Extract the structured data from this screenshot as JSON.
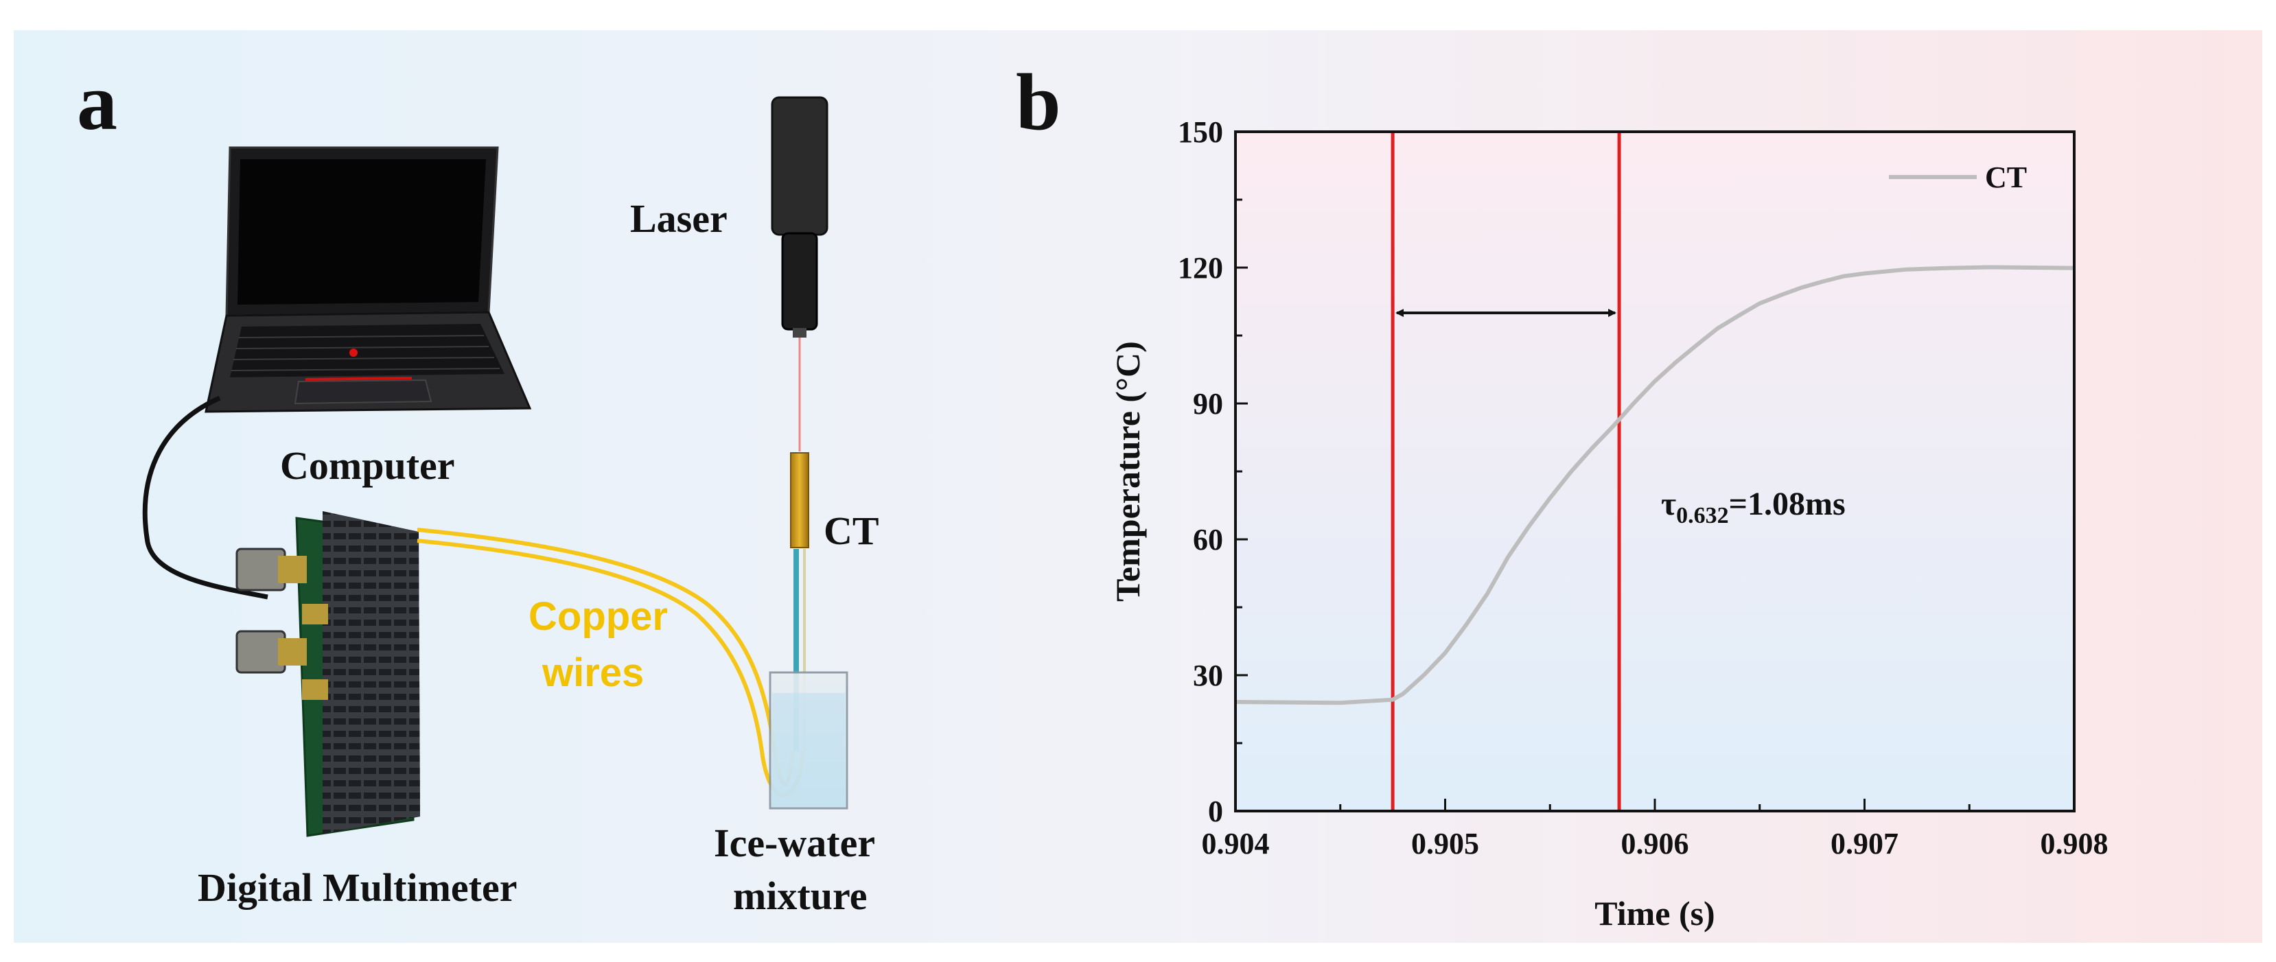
{
  "panel_a": {
    "letter": "a",
    "labels": {
      "laser": "Laser",
      "computer": "Computer",
      "ct": "CT",
      "copper": "Copper",
      "wires": "wires",
      "multimeter": "Digital Multimeter",
      "ice1": "Ice-water",
      "ice2": "mixture"
    },
    "colors": {
      "copper_wire": "#f5c518",
      "laser_beam": "#e05050",
      "red_line": "#e02020"
    }
  },
  "panel_b": {
    "letter": "b",
    "annotation_sym": "τ",
    "annotation_sub": "0.632",
    "annotation_rest": "=1.08ms"
  },
  "chart_data": {
    "type": "line",
    "xlabel": "Time (s)",
    "ylabel": "Temperature (°C)",
    "xlim": [
      0.904,
      0.908
    ],
    "ylim": [
      0,
      150
    ],
    "xticks": [
      0.904,
      0.905,
      0.906,
      0.907,
      0.908
    ],
    "yticks": [
      0,
      30,
      60,
      90,
      120,
      150
    ],
    "xtick_labels": [
      "0.904",
      "0.905",
      "0.906",
      "0.907",
      "0.908"
    ],
    "ytick_labels": [
      "0",
      "30",
      "60",
      "90",
      "120",
      "150"
    ],
    "legend": "top-right",
    "series": [
      {
        "name": "CT",
        "color": "#bdbdbd",
        "x": [
          0.904,
          0.9045,
          0.90475,
          0.9048,
          0.9049,
          0.905,
          0.9051,
          0.9052,
          0.9053,
          0.9054,
          0.9055,
          0.9056,
          0.9057,
          0.9058,
          0.9059,
          0.906,
          0.9061,
          0.9062,
          0.9063,
          0.9064,
          0.9065,
          0.9066,
          0.9067,
          0.9068,
          0.9069,
          0.907,
          0.9072,
          0.9074,
          0.9076,
          0.908
        ],
        "y": [
          24,
          24,
          24.5,
          26,
          30,
          35,
          41,
          48,
          56,
          63,
          69,
          75,
          80,
          85,
          90,
          95,
          99,
          103,
          106.5,
          109.5,
          112,
          114,
          115.5,
          117,
          118,
          118.8,
          119.5,
          120,
          120,
          120
        ]
      }
    ],
    "vlines": [
      0.90475,
      0.90583
    ],
    "vline_color": "#e02020",
    "arrow": {
      "x1": 0.90475,
      "x2": 0.90583,
      "y": 110
    }
  }
}
